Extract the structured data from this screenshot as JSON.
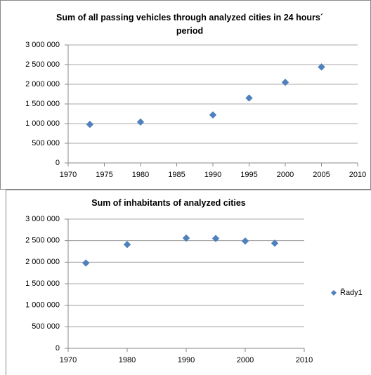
{
  "chart_data": [
    {
      "type": "scatter",
      "title": "Sum of all passing vehicles through analyzed cities in 24 hours´ period",
      "x": [
        1973,
        1980,
        1990,
        1995,
        2000,
        2005
      ],
      "series": [
        {
          "color": "#4f81bd",
          "values": [
            980000,
            1040000,
            1220000,
            1650000,
            2050000,
            2440000
          ]
        }
      ],
      "xlim": [
        1970,
        2010
      ],
      "xticks": [
        1970,
        1975,
        1980,
        1985,
        1990,
        1995,
        2000,
        2005,
        2010
      ],
      "ylim": [
        0,
        3000000
      ],
      "yticks": [
        0,
        {
          "value": 500000,
          "label": "500 000"
        },
        {
          "value": 1000000,
          "label": "1 000 000"
        },
        {
          "value": 1500000,
          "label": "1 500 000"
        },
        {
          "value": 2000000,
          "label": "2 000 000"
        },
        {
          "value": 2500000,
          "label": "2 500 000"
        },
        {
          "value": 3000000,
          "label": "3 000 000"
        }
      ],
      "grid": true
    },
    {
      "type": "scatter",
      "title": "Sum of inhabitants of analyzed cities",
      "x": [
        1973,
        1980,
        1990,
        1995,
        2000,
        2005
      ],
      "series": [
        {
          "name": "Řady1",
          "color": "#4f81bd",
          "values": [
            1980000,
            2410000,
            2560000,
            2550000,
            2490000,
            2440000
          ]
        }
      ],
      "xlim": [
        1970,
        2010
      ],
      "xticks": [
        1970,
        1980,
        1990,
        2000,
        2010
      ],
      "ylim": [
        0,
        3000000
      ],
      "yticks": [
        0,
        {
          "value": 500000,
          "label": "500 000"
        },
        {
          "value": 1000000,
          "label": "1 000 000"
        },
        {
          "value": 1500000,
          "label": "1 500 000"
        },
        {
          "value": 2000000,
          "label": "2 000 000"
        },
        {
          "value": 2500000,
          "label": "2 500 000"
        },
        {
          "value": 3000000,
          "label": "3 000 000"
        }
      ],
      "grid": true,
      "legend": "right"
    }
  ]
}
